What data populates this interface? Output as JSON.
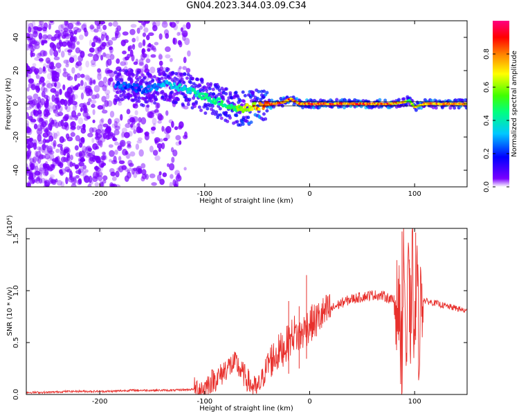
{
  "title": "GN04.2023.344.03.09.C34",
  "colors": {
    "spectrogram_noise": "#7a00ff",
    "snr_line": "#e8302c",
    "axis": "#000000"
  },
  "chart_data": [
    {
      "type": "heatmap",
      "name": "spectrogram",
      "xlabel": "Height of straight line (km)",
      "ylabel": "Frequency (Hz)",
      "xlim": [
        -270,
        150
      ],
      "ylim": [
        -50,
        50
      ],
      "xticks": [
        -200,
        -100,
        0,
        100
      ],
      "xtick_labels": [
        "-200",
        "-100",
        "0",
        "100"
      ],
      "yticks": [
        -40,
        -20,
        0,
        20,
        40
      ],
      "ytick_labels": [
        "-40",
        "-20",
        "0",
        "20",
        "40"
      ],
      "colorbar": {
        "label": "Normalized spectral amplitude",
        "range": [
          0,
          1
        ],
        "ticks": [
          0.0,
          0.2,
          0.4,
          0.6,
          0.8
        ],
        "tick_labels": [
          "0.0",
          "0.2",
          "0.4",
          "0.6",
          "0.8"
        ],
        "colormap": "rainbow"
      },
      "signal_track": {
        "x": [
          -185,
          -170,
          -155,
          -140,
          -125,
          -110,
          -95,
          -85,
          -75,
          -65,
          -55,
          -45,
          -35,
          -25,
          -18,
          -10,
          0,
          20,
          40,
          60,
          80,
          90,
          95,
          100,
          110,
          130,
          150
        ],
        "frequency": [
          11,
          10,
          8,
          12,
          10,
          7,
          3,
          1,
          -2,
          -3,
          -2,
          -1,
          0,
          1,
          3,
          0,
          0,
          0,
          0,
          0,
          0,
          1,
          2,
          -2,
          0,
          0,
          0
        ],
        "amplitude": [
          0.3,
          0.25,
          0.3,
          0.35,
          0.4,
          0.45,
          0.5,
          0.5,
          0.55,
          0.7,
          0.85,
          0.9,
          0.95,
          0.95,
          0.9,
          0.95,
          0.95,
          0.95,
          0.95,
          0.95,
          0.9,
          0.85,
          0.6,
          0.8,
          0.9,
          0.9,
          0.9
        ]
      },
      "noise_region_x": [
        -270,
        -115
      ]
    },
    {
      "type": "line",
      "name": "snr",
      "xlabel": "Height of straight line (km)",
      "ylabel": "SNR (10 * v/v)",
      "scale_label": "(x10⁴)",
      "xlim": [
        -270,
        150
      ],
      "ylim": [
        0,
        1.6
      ],
      "xticks": [
        -200,
        -100,
        0,
        100
      ],
      "xtick_labels": [
        "-200",
        "-100",
        "0",
        "100"
      ],
      "yticks": [
        0.0,
        0.5,
        1.0,
        1.5
      ],
      "ytick_labels": [
        "0.0",
        "0.5",
        "1.0",
        "1.5"
      ],
      "x": [
        -270,
        -250,
        -230,
        -210,
        -190,
        -170,
        -150,
        -130,
        -110,
        -100,
        -95,
        -85,
        -80,
        -75,
        -70,
        -65,
        -60,
        -55,
        -50,
        -45,
        -40,
        -35,
        -30,
        -25,
        -20,
        -15,
        -10,
        -5,
        0,
        5,
        10,
        20,
        30,
        40,
        50,
        60,
        70,
        75,
        80,
        85,
        88,
        90,
        92,
        94,
        96,
        98,
        100,
        102,
        104,
        106,
        110,
        120,
        130,
        140,
        150
      ],
      "y": [
        0.02,
        0.02,
        0.03,
        0.03,
        0.03,
        0.04,
        0.04,
        0.04,
        0.05,
        0.06,
        0.12,
        0.18,
        0.25,
        0.28,
        0.3,
        0.22,
        0.15,
        0.08,
        0.05,
        0.15,
        0.3,
        0.35,
        0.4,
        0.45,
        0.5,
        0.6,
        0.55,
        0.62,
        0.68,
        0.7,
        0.75,
        0.82,
        0.88,
        0.92,
        0.94,
        0.96,
        0.95,
        0.93,
        0.9,
        0.85,
        0.3,
        1.5,
        0.2,
        1.2,
        0.6,
        1.3,
        0.4,
        1.25,
        0.5,
        0.95,
        0.9,
        0.88,
        0.85,
        0.83,
        0.8
      ],
      "noise_spikes": [
        {
          "x": -20,
          "y": 0.9
        },
        {
          "x": -10,
          "y": 0.85
        },
        {
          "x": -3,
          "y": 1.15
        },
        {
          "x": 88,
          "y": 1.57
        },
        {
          "x": 95,
          "y": 1.3
        },
        {
          "x": 101,
          "y": 1.56
        }
      ]
    }
  ]
}
